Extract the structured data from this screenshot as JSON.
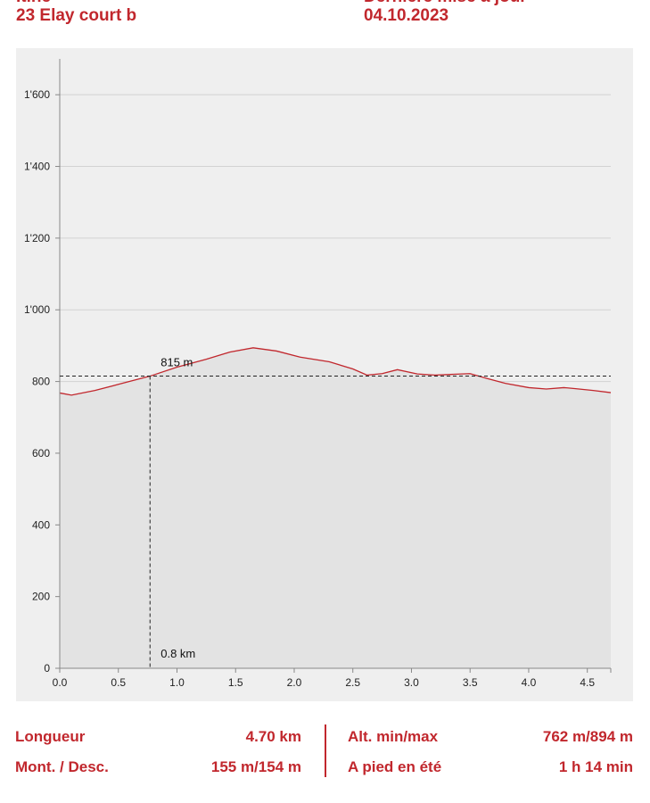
{
  "header": {
    "top_left_partial": "Itiné",
    "top_right_partial": "Dernière mise à jour",
    "title": "23 Elay court b",
    "date": "04.10.2023"
  },
  "chart_data": {
    "type": "area",
    "x": [
      0.0,
      0.1,
      0.3,
      0.5,
      0.77,
      1.0,
      1.25,
      1.45,
      1.65,
      1.85,
      2.05,
      2.3,
      2.5,
      2.62,
      2.75,
      2.88,
      3.05,
      3.2,
      3.35,
      3.5,
      3.65,
      3.8,
      4.0,
      4.15,
      4.3,
      4.4,
      4.55,
      4.7
    ],
    "y": [
      768,
      762,
      775,
      792,
      815,
      840,
      862,
      882,
      894,
      885,
      868,
      855,
      835,
      818,
      822,
      833,
      821,
      818,
      820,
      822,
      808,
      795,
      783,
      779,
      783,
      780,
      775,
      769
    ],
    "xlim": [
      0,
      4.7
    ],
    "ylim": [
      0,
      1700
    ],
    "xticks": [
      "0.0",
      "0.5",
      "1.0",
      "1.5",
      "2.0",
      "2.5",
      "3.0",
      "3.5",
      "4.0",
      "4.5"
    ],
    "xtick_values": [
      0,
      0.5,
      1.0,
      1.5,
      2.0,
      2.5,
      3.0,
      3.5,
      4.0,
      4.5
    ],
    "yticks": [
      "0",
      "200",
      "400",
      "600",
      "800",
      "1'000",
      "1'200",
      "1'400",
      "1'600"
    ],
    "ytick_values": [
      0,
      200,
      400,
      600,
      800,
      1000,
      1200,
      1400,
      1600
    ],
    "grid": true,
    "marker": {
      "x": 0.77,
      "y": 815,
      "y_label": "815 m",
      "x_label": "0.8 km"
    },
    "colors": {
      "line": "#c1272d",
      "fill": "#e3e3e3",
      "grid": "#d2d2d2",
      "panel": "#efefef"
    }
  },
  "stats": {
    "length_label": "Longueur",
    "length_value": "4.70 km",
    "updown_label": "Mont. / Desc.",
    "updown_value": "155 m/154 m",
    "alt_label": "Alt. min/max",
    "alt_value": "762 m/894 m",
    "walk_label": "A pied en été",
    "walk_value": "1 h 14 min"
  },
  "accent_color": "#c1272d"
}
